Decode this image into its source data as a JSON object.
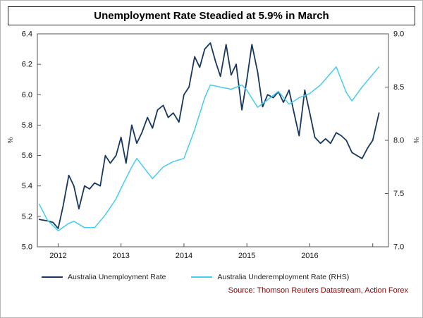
{
  "title": "Unemployment Rate Steadied at 5.9% in March",
  "source": "Source: Thomson Reuters Datastream, Action Forex",
  "legend": [
    {
      "label": "Australia Unemployment Rate",
      "color": "#17375e"
    },
    {
      "label": "Australia Underemployment Rate (RHS)",
      "color": "#45cdf0"
    }
  ],
  "chart_data": {
    "type": "line",
    "title": "Unemployment Rate Steadied at 5.9% in March",
    "x_range": [
      2011.67,
      2017.25
    ],
    "x_ticks": [
      {
        "value": 2012,
        "label": "2012"
      },
      {
        "value": 2013,
        "label": "2013"
      },
      {
        "value": 2014,
        "label": "2014"
      },
      {
        "value": 2015,
        "label": "2015"
      },
      {
        "value": 2016,
        "label": "2016"
      },
      {
        "value": 2017,
        "label": ""
      }
    ],
    "left_axis": {
      "label": "%",
      "min": 5.0,
      "max": 6.4,
      "ticks": [
        5.0,
        5.2,
        5.4,
        5.6,
        5.8,
        6.0,
        6.2,
        6.4
      ]
    },
    "right_axis": {
      "label": "%",
      "min": 7.0,
      "max": 9.0,
      "ticks": [
        7.0,
        7.5,
        8.0,
        8.5,
        9.0
      ]
    },
    "grid": false,
    "legend_position": "bottom-left",
    "series": [
      {
        "name": "Australia Unemployment Rate",
        "axis": "left",
        "color": "#17375e",
        "stroke_width": 1.8,
        "points": [
          [
            2011.7,
            5.18
          ],
          [
            2011.83,
            5.17
          ],
          [
            2011.92,
            5.16
          ],
          [
            2012.0,
            5.12
          ],
          [
            2012.08,
            5.27
          ],
          [
            2012.17,
            5.47
          ],
          [
            2012.25,
            5.4
          ],
          [
            2012.33,
            5.25
          ],
          [
            2012.42,
            5.4
          ],
          [
            2012.5,
            5.38
          ],
          [
            2012.58,
            5.42
          ],
          [
            2012.67,
            5.4
          ],
          [
            2012.75,
            5.6
          ],
          [
            2012.83,
            5.55
          ],
          [
            2012.92,
            5.6
          ],
          [
            2013.0,
            5.72
          ],
          [
            2013.08,
            5.55
          ],
          [
            2013.17,
            5.8
          ],
          [
            2013.25,
            5.68
          ],
          [
            2013.33,
            5.75
          ],
          [
            2013.42,
            5.85
          ],
          [
            2013.5,
            5.78
          ],
          [
            2013.58,
            5.9
          ],
          [
            2013.67,
            5.93
          ],
          [
            2013.75,
            5.85
          ],
          [
            2013.83,
            5.88
          ],
          [
            2013.92,
            5.82
          ],
          [
            2014.0,
            6.0
          ],
          [
            2014.08,
            6.05
          ],
          [
            2014.17,
            6.25
          ],
          [
            2014.25,
            6.18
          ],
          [
            2014.33,
            6.3
          ],
          [
            2014.42,
            6.34
          ],
          [
            2014.5,
            6.22
          ],
          [
            2014.58,
            6.12
          ],
          [
            2014.67,
            6.33
          ],
          [
            2014.75,
            6.13
          ],
          [
            2014.83,
            6.2
          ],
          [
            2014.92,
            5.9
          ],
          [
            2015.0,
            6.1
          ],
          [
            2015.08,
            6.33
          ],
          [
            2015.17,
            6.15
          ],
          [
            2015.25,
            5.92
          ],
          [
            2015.33,
            6.0
          ],
          [
            2015.42,
            5.98
          ],
          [
            2015.5,
            6.02
          ],
          [
            2015.58,
            5.95
          ],
          [
            2015.67,
            6.03
          ],
          [
            2015.75,
            5.88
          ],
          [
            2015.83,
            5.73
          ],
          [
            2015.92,
            6.03
          ],
          [
            2016.0,
            5.88
          ],
          [
            2016.08,
            5.72
          ],
          [
            2016.17,
            5.68
          ],
          [
            2016.25,
            5.71
          ],
          [
            2016.33,
            5.68
          ],
          [
            2016.42,
            5.75
          ],
          [
            2016.5,
            5.73
          ],
          [
            2016.58,
            5.7
          ],
          [
            2016.67,
            5.62
          ],
          [
            2016.75,
            5.6
          ],
          [
            2016.83,
            5.58
          ],
          [
            2016.92,
            5.65
          ],
          [
            2017.0,
            5.7
          ],
          [
            2017.1,
            5.88
          ]
        ]
      },
      {
        "name": "Australia Underemployment Rate (RHS)",
        "axis": "right",
        "color": "#45cdf0",
        "stroke_width": 1.5,
        "points": [
          [
            2011.7,
            7.4
          ],
          [
            2011.83,
            7.25
          ],
          [
            2012.0,
            7.15
          ],
          [
            2012.17,
            7.22
          ],
          [
            2012.25,
            7.24
          ],
          [
            2012.42,
            7.18
          ],
          [
            2012.58,
            7.18
          ],
          [
            2012.75,
            7.3
          ],
          [
            2012.92,
            7.45
          ],
          [
            2013.0,
            7.55
          ],
          [
            2013.17,
            7.75
          ],
          [
            2013.25,
            7.83
          ],
          [
            2013.42,
            7.7
          ],
          [
            2013.5,
            7.64
          ],
          [
            2013.67,
            7.75
          ],
          [
            2013.83,
            7.8
          ],
          [
            2014.0,
            7.83
          ],
          [
            2014.17,
            8.1
          ],
          [
            2014.33,
            8.4
          ],
          [
            2014.42,
            8.52
          ],
          [
            2014.58,
            8.5
          ],
          [
            2014.75,
            8.48
          ],
          [
            2014.92,
            8.52
          ],
          [
            2015.0,
            8.47
          ],
          [
            2015.17,
            8.31
          ],
          [
            2015.33,
            8.38
          ],
          [
            2015.5,
            8.46
          ],
          [
            2015.67,
            8.34
          ],
          [
            2015.83,
            8.4
          ],
          [
            2016.0,
            8.44
          ],
          [
            2016.17,
            8.52
          ],
          [
            2016.42,
            8.69
          ],
          [
            2016.58,
            8.45
          ],
          [
            2016.67,
            8.37
          ],
          [
            2016.83,
            8.5
          ],
          [
            2017.1,
            8.69
          ]
        ]
      }
    ]
  }
}
